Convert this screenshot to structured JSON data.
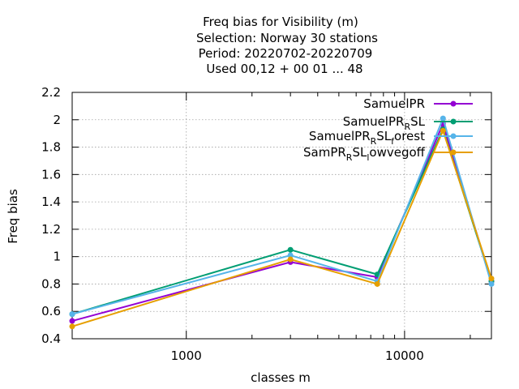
{
  "chart_data": {
    "type": "line",
    "title_lines": [
      "Freq bias  for Visibility (m)",
      "Selection: Norway     30 stations",
      "Period: 20220702-20220709",
      "Used  00,12  + 00 01 ... 48"
    ],
    "xlabel": "classes m",
    "ylabel": "Freq bias",
    "x_scale": "log",
    "xlim": [
      300,
      25000
    ],
    "ylim": [
      0.4,
      2.2
    ],
    "x_ticks": [
      {
        "value": 1000,
        "label": "1000"
      },
      {
        "value": 10000,
        "label": "10000"
      }
    ],
    "x_minor_ticks": [
      2000,
      3000,
      4000,
      5000,
      6000,
      7000,
      8000,
      9000,
      20000
    ],
    "y_ticks": [
      {
        "value": 0.4,
        "label": "0.4"
      },
      {
        "value": 0.6,
        "label": "0.6"
      },
      {
        "value": 0.8,
        "label": "0.8"
      },
      {
        "value": 1.0,
        "label": "1"
      },
      {
        "value": 1.2,
        "label": "1.2"
      },
      {
        "value": 1.4,
        "label": "1.4"
      },
      {
        "value": 1.6,
        "label": "1.6"
      },
      {
        "value": 1.8,
        "label": "1.8"
      },
      {
        "value": 2.0,
        "label": "2"
      },
      {
        "value": 2.2,
        "label": "2.2"
      }
    ],
    "grid": true,
    "legend_position": "top-right",
    "x": [
      300,
      3000,
      7500,
      15000,
      25000
    ],
    "series": [
      {
        "name": "SamuelPR",
        "legend": {
          "parts": [
            [
              "SamuelPR",
              "n"
            ]
          ]
        },
        "color": "#9400d3",
        "values": [
          0.53,
          0.96,
          0.85,
          1.97,
          0.82
        ]
      },
      {
        "name": "SamuelPR_R SL",
        "legend": {
          "parts": [
            [
              "SamuelPR",
              "n"
            ],
            [
              "R",
              "sub"
            ],
            [
              "SL",
              "n"
            ]
          ]
        },
        "color": "#009e73",
        "values": [
          0.58,
          1.05,
          0.87,
          1.93,
          0.82
        ]
      },
      {
        "name": "SamuelPR_R SL_f orest",
        "legend": {
          "parts": [
            [
              "SamuelPR",
              "n"
            ],
            [
              "R",
              "sub"
            ],
            [
              "SL",
              "n"
            ],
            [
              "f",
              "sub"
            ],
            [
              "orest",
              "n"
            ]
          ]
        },
        "color": "#56b4e9",
        "values": [
          0.58,
          1.01,
          0.82,
          2.01,
          0.8
        ]
      },
      {
        "name": "SamPR_R SL_l owvegoff",
        "legend": {
          "parts": [
            [
              "SamPR",
              "n"
            ],
            [
              "R",
              "sub"
            ],
            [
              "SL",
              "n"
            ],
            [
              "l",
              "sub"
            ],
            [
              "owvegoff",
              "n"
            ]
          ]
        },
        "color": "#e69f00",
        "values": [
          0.49,
          0.98,
          0.8,
          1.92,
          0.84
        ]
      }
    ]
  }
}
